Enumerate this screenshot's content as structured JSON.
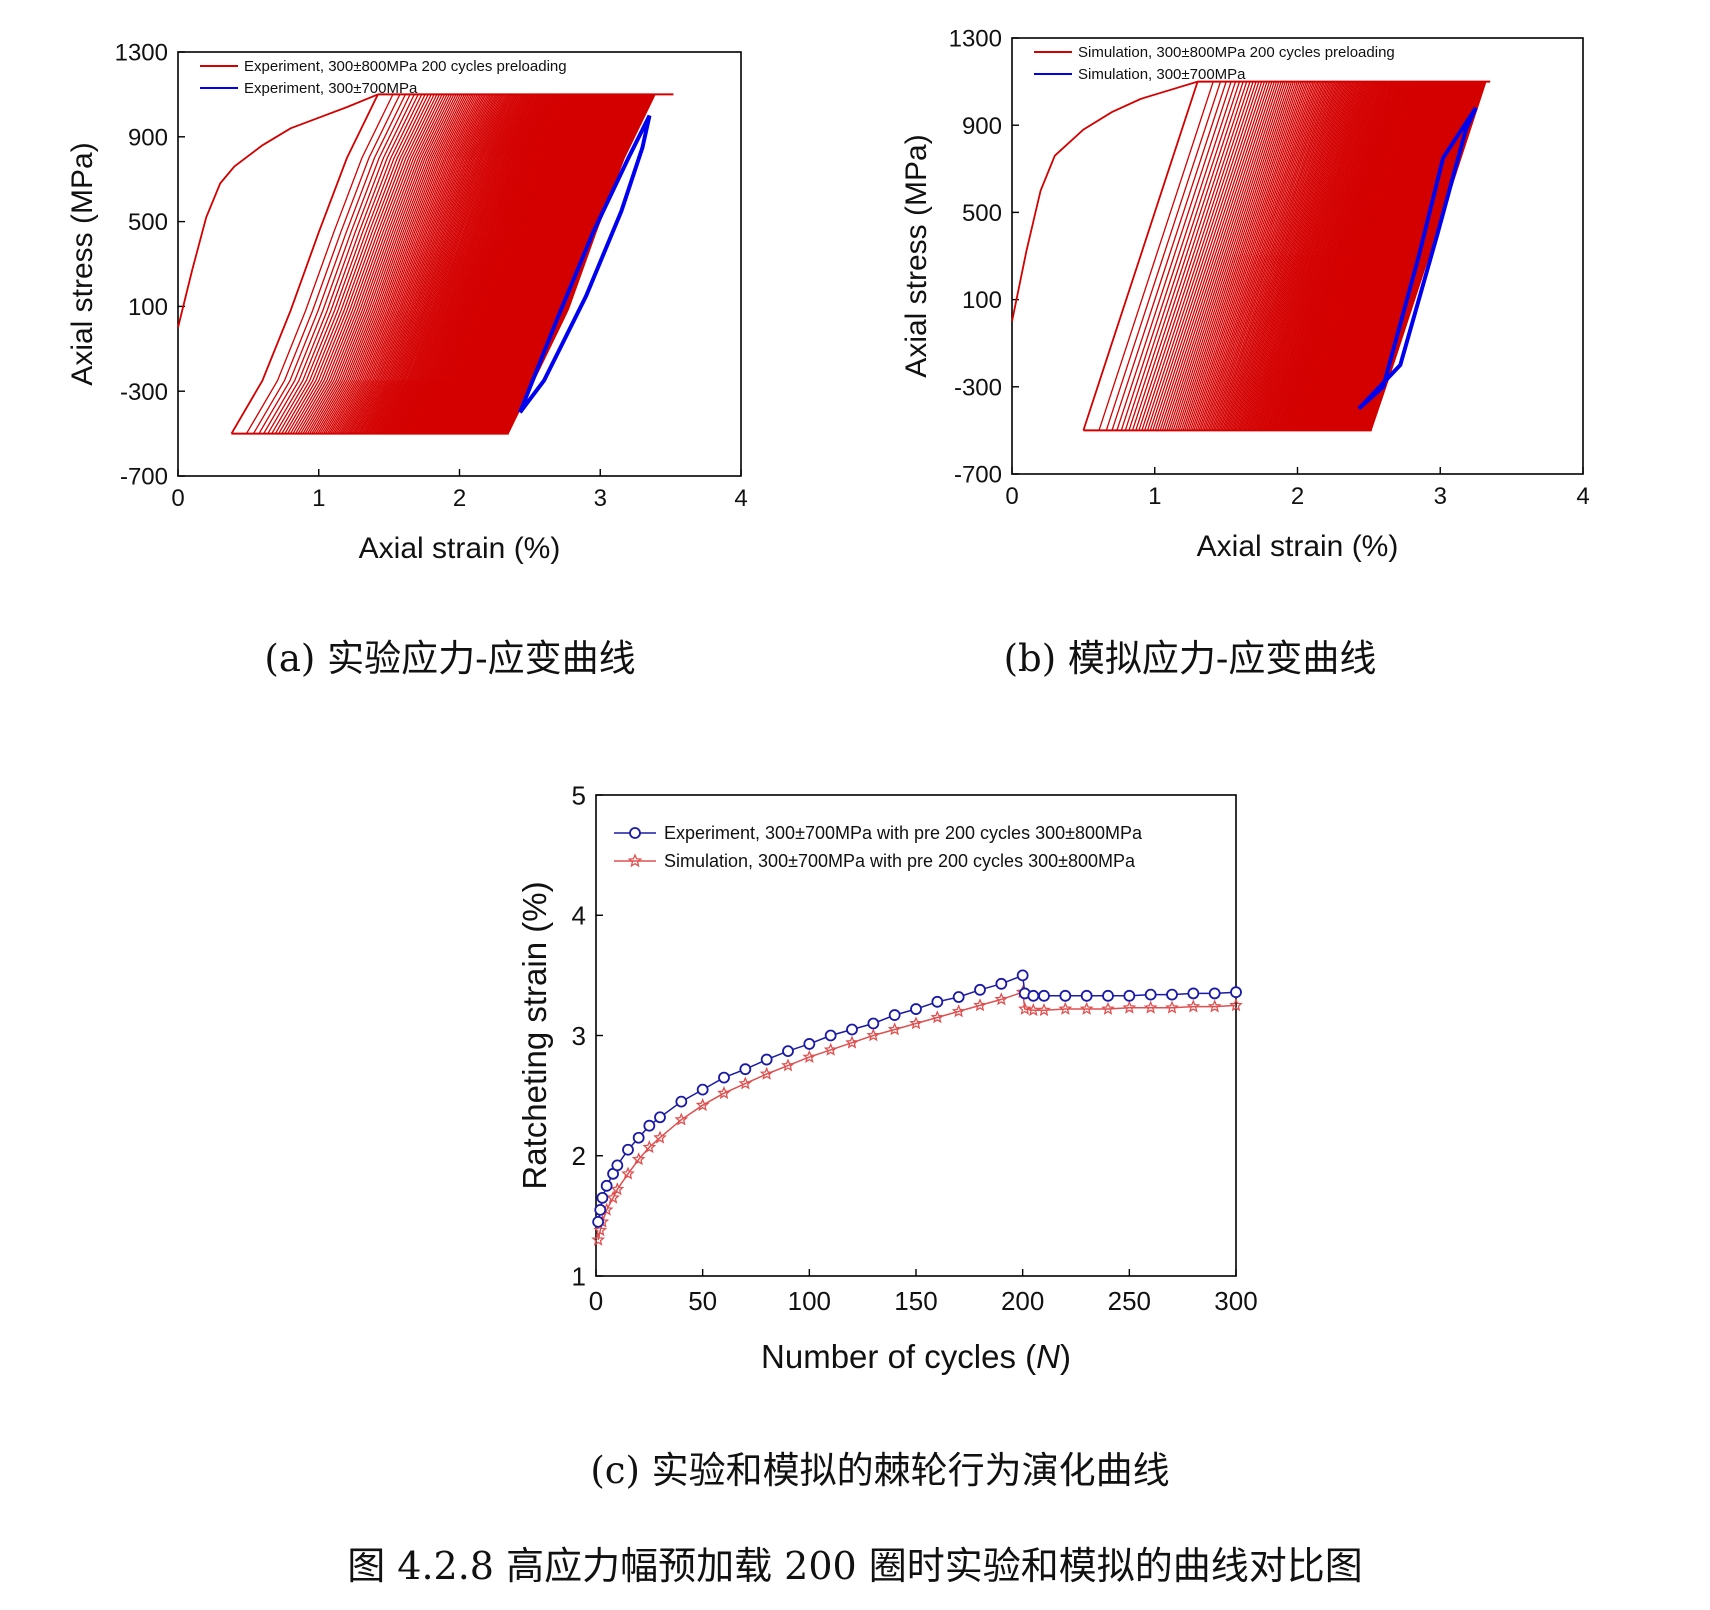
{
  "chart_data": [
    {
      "id": "a",
      "type": "line",
      "xlabel": "Axial strain (%)",
      "ylabel": "Axial stress (MPa)",
      "xlim": [
        0,
        4
      ],
      "ylim": [
        -700,
        1300
      ],
      "xticks": [
        "0",
        "1",
        "2",
        "3",
        "4"
      ],
      "yticks": [
        "1300",
        "900",
        "500",
        "100",
        "-300",
        "-700"
      ],
      "legend_position": "top-left",
      "grid": false,
      "caption": "(a) 实验应力-应变曲线",
      "series": [
        {
          "name": "Experiment, 300±800MPa 200 cycles preloading",
          "color": "#d40000",
          "stress_range": [
            -500,
            1100
          ],
          "initial_loading": [
            [
              0,
              0
            ],
            [
              0.1,
              270
            ],
            [
              0.2,
              520
            ],
            [
              0.3,
              680
            ],
            [
              0.4,
              760
            ],
            [
              0.6,
              860
            ],
            [
              0.8,
              940
            ],
            [
              1.0,
              990
            ],
            [
              1.2,
              1040
            ],
            [
              1.42,
              1100
            ]
          ],
          "first_unloading": [
            [
              1.42,
              1100
            ],
            [
              1.2,
              800
            ],
            [
              1.0,
              450
            ],
            [
              0.8,
              80
            ],
            [
              0.6,
              -250
            ],
            [
              0.38,
              -500
            ]
          ],
          "loop_band_end_strain": {
            "lower": 2.35,
            "upper": 3.52
          }
        },
        {
          "name": "Experiment, 300±700MPa",
          "color": "#0000ee",
          "loop": [
            [
              2.43,
              -400
            ],
            [
              2.7,
              50
            ],
            [
              2.95,
              450
            ],
            [
              3.2,
              800
            ],
            [
              3.35,
              1000
            ],
            [
              3.3,
              850
            ],
            [
              3.15,
              550
            ],
            [
              2.9,
              150
            ],
            [
              2.6,
              -250
            ],
            [
              2.43,
              -400
            ]
          ]
        }
      ]
    },
    {
      "id": "b",
      "type": "line",
      "xlabel": "Axial strain (%)",
      "ylabel": "Axial stress (MPa)",
      "xlim": [
        0,
        4
      ],
      "ylim": [
        -700,
        1300
      ],
      "xticks": [
        "0",
        "1",
        "2",
        "3",
        "4"
      ],
      "yticks": [
        "1300",
        "900",
        "500",
        "100",
        "-300",
        "-700"
      ],
      "legend_position": "top-left",
      "grid": false,
      "caption": "(b) 模拟应力-应变曲线",
      "series": [
        {
          "name": "Simulation, 300±800MPa 200 cycles preloading",
          "color": "#d40000",
          "stress_range": [
            -500,
            1100
          ],
          "initial_loading": [
            [
              0,
              0
            ],
            [
              0.1,
              320
            ],
            [
              0.2,
              600
            ],
            [
              0.3,
              760
            ],
            [
              0.5,
              880
            ],
            [
              0.7,
              960
            ],
            [
              0.9,
              1020
            ],
            [
              1.1,
              1060
            ],
            [
              1.3,
              1100
            ]
          ],
          "first_unloading": [
            [
              1.3,
              1100
            ],
            [
              1.1,
              700
            ],
            [
              0.9,
              300
            ],
            [
              0.7,
              -100
            ],
            [
              0.5,
              -500
            ]
          ],
          "loop_band_end_strain": {
            "lower": 2.52,
            "upper": 3.35
          }
        },
        {
          "name": "Simulation, 300±700MPa",
          "color": "#0000ee",
          "loop": [
            [
              2.43,
              -400
            ],
            [
              2.6,
              -300
            ],
            [
              2.85,
              300
            ],
            [
              3.02,
              750
            ],
            [
              3.25,
              980
            ],
            [
              3.18,
              880
            ],
            [
              2.98,
              400
            ],
            [
              2.72,
              -200
            ],
            [
              2.43,
              -400
            ]
          ]
        }
      ]
    },
    {
      "id": "c",
      "type": "scatter",
      "xlabel": "Number of cycles (N)",
      "xlabel_main": "Number of cycles (",
      "xlabel_var": "N",
      "xlabel_end": ")",
      "ylabel": "Ratcheting strain (%)",
      "xlim": [
        0,
        300
      ],
      "ylim": [
        1,
        5
      ],
      "xticks": [
        "0",
        "50",
        "100",
        "150",
        "200",
        "250",
        "300"
      ],
      "yticks": [
        "5",
        "4",
        "3",
        "2",
        "1"
      ],
      "legend_position": "top-left",
      "grid": false,
      "caption": "(c) 实验和模拟的棘轮行为演化曲线",
      "series": [
        {
          "name": "Experiment, 300±700MPa with pre 200 cycles 300±800MPa",
          "color": "#1a1aa6",
          "marker": "circle",
          "x": [
            1,
            2,
            3,
            5,
            8,
            10,
            15,
            20,
            25,
            30,
            40,
            50,
            60,
            70,
            80,
            90,
            100,
            110,
            120,
            130,
            140,
            150,
            160,
            170,
            180,
            190,
            200,
            201,
            205,
            210,
            220,
            230,
            240,
            250,
            260,
            270,
            280,
            290,
            300
          ],
          "values": [
            1.45,
            1.55,
            1.65,
            1.75,
            1.85,
            1.92,
            2.05,
            2.15,
            2.25,
            2.32,
            2.45,
            2.55,
            2.65,
            2.72,
            2.8,
            2.87,
            2.93,
            3.0,
            3.05,
            3.1,
            3.17,
            3.22,
            3.28,
            3.32,
            3.38,
            3.43,
            3.5,
            3.35,
            3.33,
            3.33,
            3.33,
            3.33,
            3.33,
            3.33,
            3.34,
            3.34,
            3.35,
            3.35,
            3.36
          ]
        },
        {
          "name": "Simulation, 300±700MPa with pre 200 cycles 300±800MPa",
          "color": "#e05050",
          "marker": "star",
          "x": [
            1,
            2,
            3,
            5,
            8,
            10,
            15,
            20,
            25,
            30,
            40,
            50,
            60,
            70,
            80,
            90,
            100,
            110,
            120,
            130,
            140,
            150,
            160,
            170,
            180,
            190,
            200,
            201,
            205,
            210,
            220,
            230,
            240,
            250,
            260,
            270,
            280,
            290,
            300
          ],
          "values": [
            1.3,
            1.38,
            1.45,
            1.55,
            1.65,
            1.72,
            1.85,
            1.97,
            2.07,
            2.15,
            2.3,
            2.42,
            2.52,
            2.6,
            2.68,
            2.75,
            2.82,
            2.88,
            2.94,
            3.0,
            3.05,
            3.1,
            3.15,
            3.2,
            3.25,
            3.3,
            3.36,
            3.22,
            3.21,
            3.21,
            3.22,
            3.22,
            3.22,
            3.23,
            3.23,
            3.23,
            3.24,
            3.24,
            3.25
          ]
        }
      ]
    }
  ],
  "figure_caption": "图 4.2.8  高应力幅预加载 200 圈时实验和模拟的曲线对比图"
}
